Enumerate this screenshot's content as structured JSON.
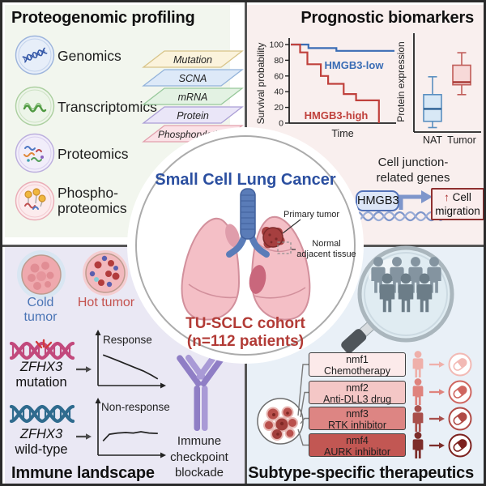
{
  "figure": {
    "center": {
      "title": "Small Cell Lung Cancer",
      "cohort_line1": "TU-SCLC cohort",
      "cohort_line2": "(n=112 patients)",
      "primary_tumor_label": "Primary tumor",
      "nat_label": "Normal\nadjacent tissue"
    },
    "top_left": {
      "title": "Proteogenomic profiling",
      "omics": [
        "Genomics",
        "Transcriptomics",
        "Proteomics",
        "Phospho-\nproteomics"
      ],
      "layers": [
        {
          "label": "Mutation",
          "fill": "#fbf3dc",
          "stroke": "#d8c489"
        },
        {
          "label": "SCNA",
          "fill": "#dde9f8",
          "stroke": "#93b3da"
        },
        {
          "label": "mRNA",
          "fill": "#e3f2e3",
          "stroke": "#97c89b"
        },
        {
          "label": "Protein",
          "fill": "#eae6f8",
          "stroke": "#ab9ed6"
        },
        {
          "label": "Phosphorylation",
          "fill": "#fbe2e7",
          "stroke": "#e2a0ad"
        }
      ]
    },
    "top_right": {
      "title": "Prognostic biomarkers",
      "gene_note": "Cell junction-\nrelated genes",
      "gene_box": "HMGB3",
      "effect_arrow": "↑",
      "effect_text": "Cell migration"
    },
    "bottom_left": {
      "title": "Immune landscape",
      "cold": "Cold tumor",
      "hot": "Hot tumor",
      "cold_color": "#4a74b5",
      "hot_color": "#c4524e",
      "gene_italic": "ZFHX3",
      "mut": "mutation",
      "wt": "wild-type",
      "icb": "Immune\ncheckpoint\nblockade"
    },
    "bottom_right": {
      "title": "Subtype-specific therapeutics",
      "subtypes": [
        {
          "name": "nmf1",
          "therapy": "Chemotherapy",
          "fill": "#fceaea",
          "person": "#efb0aa",
          "pill": "#f2b9b4"
        },
        {
          "name": "nmf2",
          "therapy": "Anti-DLL3 drug",
          "fill": "#f4c7c6",
          "person": "#df837d",
          "pill": "#cf6660"
        },
        {
          "name": "nmf3",
          "therapy": "RTK inhibitor",
          "fill": "#dd8583",
          "person": "#a84f4b",
          "pill": "#b04a45"
        },
        {
          "name": "nmf4",
          "therapy": "AURK inhibitor",
          "fill": "#c25753",
          "person": "#7c2d2a",
          "pill": "#7c211e"
        }
      ]
    }
  },
  "chart_data": {
    "km": {
      "type": "line",
      "xlabel": "Time",
      "ylabel": "Survival probability",
      "yticks": [
        0,
        20,
        40,
        60,
        80,
        100
      ],
      "series": [
        {
          "name": "HMGB3-low",
          "color": "#3a6db5",
          "steps": [
            [
              0,
              100
            ],
            [
              0.17,
              100
            ],
            [
              0.17,
              95.5
            ],
            [
              0.44,
              95.5
            ],
            [
              0.44,
              92
            ],
            [
              1,
              92
            ]
          ]
        },
        {
          "name": "HMGB3-high",
          "color": "#c0413c",
          "steps": [
            [
              0,
              100
            ],
            [
              0.09,
              100
            ],
            [
              0.09,
              90
            ],
            [
              0.16,
              90
            ],
            [
              0.16,
              75
            ],
            [
              0.29,
              75
            ],
            [
              0.29,
              60
            ],
            [
              0.36,
              60
            ],
            [
              0.36,
              50
            ],
            [
              0.51,
              50
            ],
            [
              0.51,
              37
            ],
            [
              0.63,
              37
            ],
            [
              0.63,
              29
            ],
            [
              0.85,
              29
            ],
            [
              0.85,
              0
            ]
          ]
        }
      ]
    },
    "box": {
      "type": "box",
      "ylabel": "Protein expression",
      "categories": [
        "NAT",
        "Tumor"
      ],
      "series": [
        {
          "name": "NAT",
          "fill": "#d8e8f6",
          "stroke": "#5a8fc0",
          "median_color": "#2a5f93",
          "stats": {
            "lo": 0.05,
            "q1": 0.12,
            "med": 0.26,
            "q3": 0.42,
            "hi": 0.62
          }
        },
        {
          "name": "Tumor",
          "fill": "#f7d9d8",
          "stroke": "#c05c58",
          "median_color": "#a73733",
          "stats": {
            "lo": 0.42,
            "q1": 0.53,
            "med": 0.56,
            "q3": 0.75,
            "hi": 0.89
          }
        }
      ]
    },
    "mini_response": {
      "type": "line",
      "label": "Response",
      "points": [
        [
          0.03,
          0.6
        ],
        [
          0.16,
          0.54
        ],
        [
          0.3,
          0.47
        ],
        [
          0.44,
          0.4
        ],
        [
          0.58,
          0.33
        ],
        [
          0.72,
          0.26
        ],
        [
          0.86,
          0.17
        ],
        [
          0.97,
          0.09
        ]
      ]
    },
    "mini_nonresponse": {
      "type": "line",
      "label": "Non-response",
      "points": [
        [
          0.03,
          0.28
        ],
        [
          0.14,
          0.44
        ],
        [
          0.28,
          0.47
        ],
        [
          0.42,
          0.48
        ],
        [
          0.55,
          0.47
        ],
        [
          0.68,
          0.5
        ],
        [
          0.82,
          0.47
        ],
        [
          0.97,
          0.46
        ]
      ]
    }
  }
}
